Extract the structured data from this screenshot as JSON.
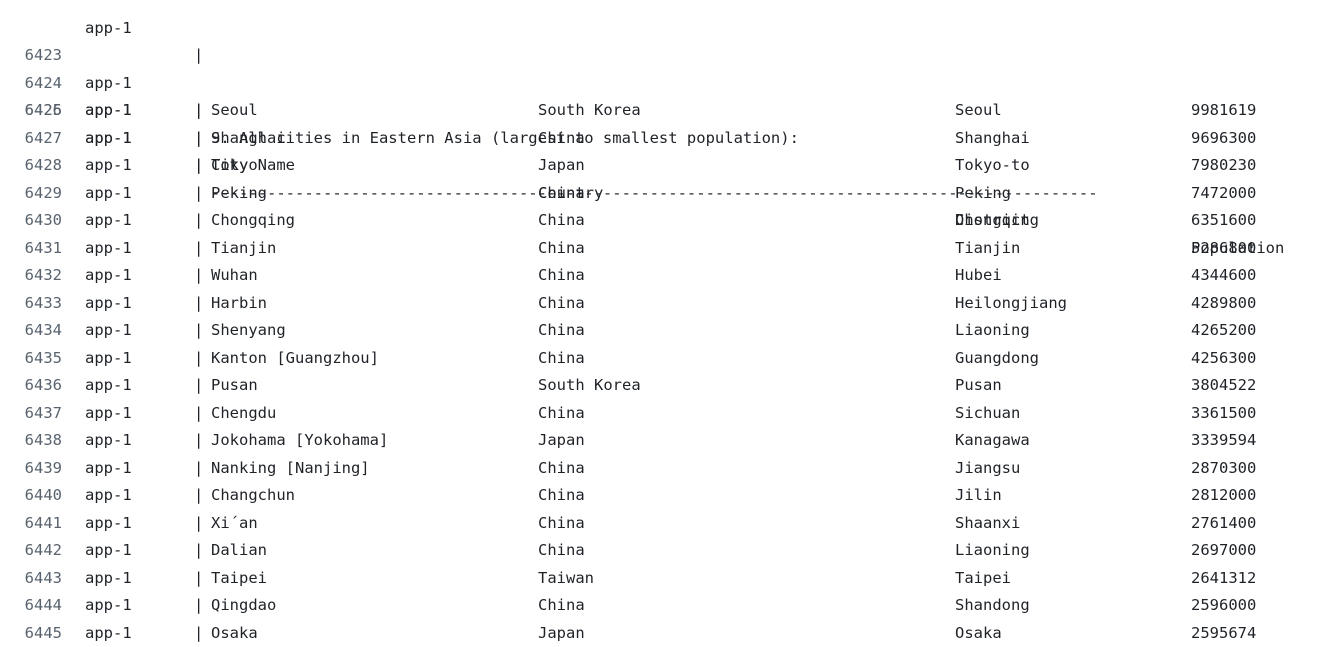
{
  "log": {
    "service": "app-1",
    "pipe": "|",
    "partial_top": {
      "service": "app-1",
      "pipe": "|"
    },
    "heading": {
      "line": "6423",
      "text": "9. All cities in Eastern Asia (largest to smallest population):"
    },
    "header": {
      "line": "6424",
      "city": "City Name",
      "country": "Country",
      "district": "District",
      "population": "Population"
    },
    "separator": {
      "line": "6425",
      "text": "-----------------------------------------------------------------------------------------------"
    },
    "rows": [
      {
        "line": "6426",
        "city": "Seoul",
        "country": "South Korea",
        "district": "Seoul",
        "population": "9981619"
      },
      {
        "line": "6427",
        "city": "Shanghai",
        "country": "China",
        "district": "Shanghai",
        "population": "9696300"
      },
      {
        "line": "6428",
        "city": "Tokyo",
        "country": "Japan",
        "district": "Tokyo-to",
        "population": "7980230"
      },
      {
        "line": "6429",
        "city": "Peking",
        "country": "China",
        "district": "Peking",
        "population": "7472000"
      },
      {
        "line": "6430",
        "city": "Chongqing",
        "country": "China",
        "district": "Chongqing",
        "population": "6351600"
      },
      {
        "line": "6431",
        "city": "Tianjin",
        "country": "China",
        "district": "Tianjin",
        "population": "5286800"
      },
      {
        "line": "6432",
        "city": "Wuhan",
        "country": "China",
        "district": "Hubei",
        "population": "4344600"
      },
      {
        "line": "6433",
        "city": "Harbin",
        "country": "China",
        "district": "Heilongjiang",
        "population": "4289800"
      },
      {
        "line": "6434",
        "city": "Shenyang",
        "country": "China",
        "district": "Liaoning",
        "population": "4265200"
      },
      {
        "line": "6435",
        "city": "Kanton [Guangzhou]",
        "country": "China",
        "district": "Guangdong",
        "population": "4256300"
      },
      {
        "line": "6436",
        "city": "Pusan",
        "country": "South Korea",
        "district": "Pusan",
        "population": "3804522"
      },
      {
        "line": "6437",
        "city": "Chengdu",
        "country": "China",
        "district": "Sichuan",
        "population": "3361500"
      },
      {
        "line": "6438",
        "city": "Jokohama [Yokohama]",
        "country": "Japan",
        "district": "Kanagawa",
        "population": "3339594"
      },
      {
        "line": "6439",
        "city": "Nanking [Nanjing]",
        "country": "China",
        "district": "Jiangsu",
        "population": "2870300"
      },
      {
        "line": "6440",
        "city": "Changchun",
        "country": "China",
        "district": "Jilin",
        "population": "2812000"
      },
      {
        "line": "6441",
        "city": "Xi´an",
        "country": "China",
        "district": "Shaanxi",
        "population": "2761400"
      },
      {
        "line": "6442",
        "city": "Dalian",
        "country": "China",
        "district": "Liaoning",
        "population": "2697000"
      },
      {
        "line": "6443",
        "city": "Taipei",
        "country": "Taiwan",
        "district": "Taipei",
        "population": "2641312"
      },
      {
        "line": "6444",
        "city": "Qingdao",
        "country": "China",
        "district": "Shandong",
        "population": "2596000"
      },
      {
        "line": "6445",
        "city": "Osaka",
        "country": "Japan",
        "district": "Osaka",
        "population": "2595674"
      }
    ]
  }
}
